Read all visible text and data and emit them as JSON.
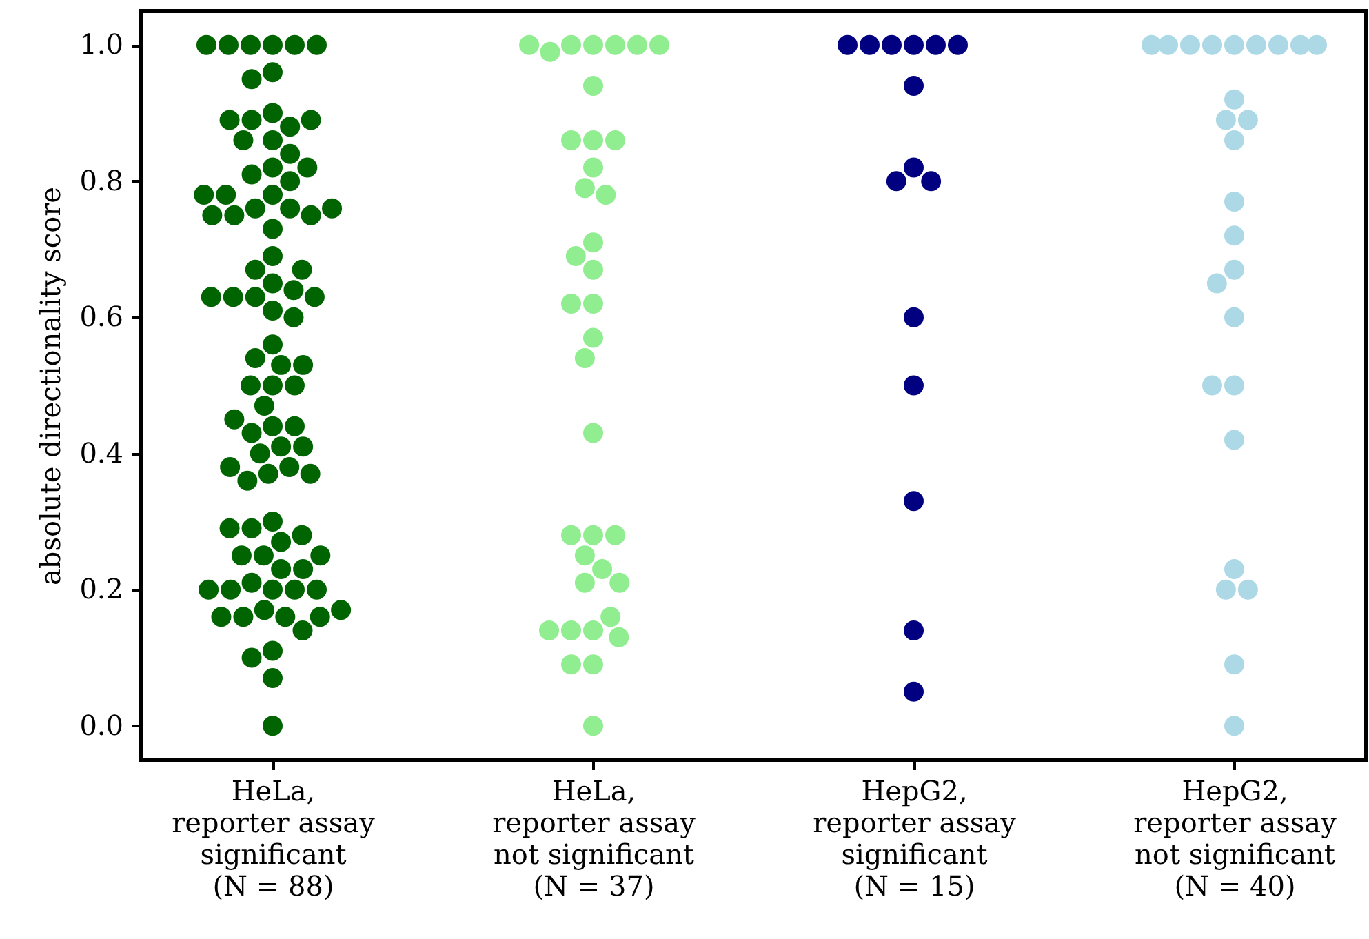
{
  "chart_data": {
    "type": "scatter",
    "ylabel": "absolute directionality score",
    "marker": "circle",
    "grid": false,
    "categories": [
      "HeLa,\nreporter assay\nsignificant\n(N = 88)",
      "HeLa,\nreporter assay\nnot significant\n(N = 37)",
      "HepG2,\nreporter assay\nsignificant\n(N = 15)",
      "HepG2,\nreporter assay\nnot significant\n(N = 40)"
    ],
    "ylim": [
      -0.05,
      1.05
    ],
    "yticks": [
      {
        "value": 0,
        "label": "0.0"
      },
      {
        "value": 0.2,
        "label": "0.2"
      },
      {
        "value": 0.4,
        "label": "0.4"
      },
      {
        "value": 0.6,
        "label": "0.6"
      },
      {
        "value": 0.8,
        "label": "0.8"
      },
      {
        "value": 1,
        "label": "1.0"
      }
    ],
    "series": [
      {
        "color": "#006400",
        "x": [
          "HeLa,\nreporter assay\nsignificant\n(N = 88)",
          "HeLa,\nreporter assay\nsignificant\n(N = 88)",
          "HeLa,\nreporter assay\nsignificant\n(N = 88)",
          "HeLa,\nreporter assay\nsignificant\n(N = 88)",
          "HeLa,\nreporter assay\nsignificant\n(N = 88)",
          "HeLa,\nreporter assay\nsignificant\n(N = 88)",
          "HeLa,\nreporter assay\nsignificant\n(N = 88)",
          "HeLa,\nreporter assay\nsignificant\n(N = 88)",
          "HeLa,\nreporter assay\nsignificant\n(N = 88)",
          "HeLa,\nreporter assay\nsignificant\n(N = 88)",
          "HeLa,\nreporter assay\nsignificant\n(N = 88)",
          "HeLa,\nreporter assay\nsignificant\n(N = 88)",
          "HeLa,\nreporter assay\nsignificant\n(N = 88)",
          "HeLa,\nreporter assay\nsignificant\n(N = 88)",
          "HeLa,\nreporter assay\nsignificant\n(N = 88)",
          "HeLa,\nreporter assay\nsignificant\n(N = 88)",
          "HeLa,\nreporter assay\nsignificant\n(N = 88)",
          "HeLa,\nreporter assay\nsignificant\n(N = 88)",
          "HeLa,\nreporter assay\nsignificant\n(N = 88)",
          "HeLa,\nreporter assay\nsignificant\n(N = 88)",
          "HeLa,\nreporter assay\nsignificant\n(N = 88)",
          "HeLa,\nreporter assay\nsignificant\n(N = 88)",
          "HeLa,\nreporter assay\nsignificant\n(N = 88)",
          "HeLa,\nreporter assay\nsignificant\n(N = 88)",
          "HeLa,\nreporter assay\nsignificant\n(N = 88)",
          "HeLa,\nreporter assay\nsignificant\n(N = 88)",
          "HeLa,\nreporter assay\nsignificant\n(N = 88)",
          "HeLa,\nreporter assay\nsignificant\n(N = 88)",
          "HeLa,\nreporter assay\nsignificant\n(N = 88)",
          "HeLa,\nreporter assay\nsignificant\n(N = 88)",
          "HeLa,\nreporter assay\nsignificant\n(N = 88)",
          "HeLa,\nreporter assay\nsignificant\n(N = 88)",
          "HeLa,\nreporter assay\nsignificant\n(N = 88)",
          "HeLa,\nreporter assay\nsignificant\n(N = 88)",
          "HeLa,\nreporter assay\nsignificant\n(N = 88)",
          "HeLa,\nreporter assay\nsignificant\n(N = 88)",
          "HeLa,\nreporter assay\nsignificant\n(N = 88)",
          "HeLa,\nreporter assay\nsignificant\n(N = 88)",
          "HeLa,\nreporter assay\nsignificant\n(N = 88)",
          "HeLa,\nreporter assay\nsignificant\n(N = 88)",
          "HeLa,\nreporter assay\nsignificant\n(N = 88)",
          "HeLa,\nreporter assay\nsignificant\n(N = 88)",
          "HeLa,\nreporter assay\nsignificant\n(N = 88)",
          "HeLa,\nreporter assay\nsignificant\n(N = 88)",
          "HeLa,\nreporter assay\nsignificant\n(N = 88)",
          "HeLa,\nreporter assay\nsignificant\n(N = 88)",
          "HeLa,\nreporter assay\nsignificant\n(N = 88)",
          "HeLa,\nreporter assay\nsignificant\n(N = 88)",
          "HeLa,\nreporter assay\nsignificant\n(N = 88)",
          "HeLa,\nreporter assay\nsignificant\n(N = 88)",
          "HeLa,\nreporter assay\nsignificant\n(N = 88)",
          "HeLa,\nreporter assay\nsignificant\n(N = 88)",
          "HeLa,\nreporter assay\nsignificant\n(N = 88)",
          "HeLa,\nreporter assay\nsignificant\n(N = 88)",
          "HeLa,\nreporter assay\nsignificant\n(N = 88)",
          "HeLa,\nreporter assay\nsignificant\n(N = 88)",
          "HeLa,\nreporter assay\nsignificant\n(N = 88)",
          "HeLa,\nreporter assay\nsignificant\n(N = 88)",
          "HeLa,\nreporter assay\nsignificant\n(N = 88)",
          "HeLa,\nreporter assay\nsignificant\n(N = 88)",
          "HeLa,\nreporter assay\nsignificant\n(N = 88)",
          "HeLa,\nreporter assay\nsignificant\n(N = 88)",
          "HeLa,\nreporter assay\nsignificant\n(N = 88)",
          "HeLa,\nreporter assay\nsignificant\n(N = 88)",
          "HeLa,\nreporter assay\nsignificant\n(N = 88)",
          "HeLa,\nreporter assay\nsignificant\n(N = 88)",
          "HeLa,\nreporter assay\nsignificant\n(N = 88)",
          "HeLa,\nreporter assay\nsignificant\n(N = 88)",
          "HeLa,\nreporter assay\nsignificant\n(N = 88)",
          "HeLa,\nreporter assay\nsignificant\n(N = 88)",
          "HeLa,\nreporter assay\nsignificant\n(N = 88)",
          "HeLa,\nreporter assay\nsignificant\n(N = 88)",
          "HeLa,\nreporter assay\nsignificant\n(N = 88)",
          "HeLa,\nreporter assay\nsignificant\n(N = 88)",
          "HeLa,\nreporter assay\nsignificant\n(N = 88)",
          "HeLa,\nreporter assay\nsignificant\n(N = 88)",
          "HeLa,\nreporter assay\nsignificant\n(N = 88)",
          "HeLa,\nreporter assay\nsignificant\n(N = 88)",
          "HeLa,\nreporter assay\nsignificant\n(N = 88)",
          "HeLa,\nreporter assay\nsignificant\n(N = 88)",
          "HeLa,\nreporter assay\nsignificant\n(N = 88)",
          "HeLa,\nreporter assay\nsignificant\n(N = 88)",
          "HeLa,\nreporter assay\nsignificant\n(N = 88)",
          "HeLa,\nreporter assay\nsignificant\n(N = 88)",
          "HeLa,\nreporter assay\nsignificant\n(N = 88)",
          "HeLa,\nreporter assay\nsignificant\n(N = 88)",
          "HeLa,\nreporter assay\nsignificant\n(N = 88)",
          "HeLa,\nreporter assay\nsignificant\n(N = 88)"
        ],
        "values": [
          1,
          1,
          1,
          1,
          1,
          1,
          0.96,
          0.95,
          0.9,
          0.89,
          0.88,
          0.89,
          0.89,
          0.86,
          0.86,
          0.84,
          0.82,
          0.81,
          0.82,
          0.8,
          0.78,
          0.76,
          0.76,
          0.75,
          0.75,
          0.75,
          0.76,
          0.78,
          0.78,
          0.73,
          0.69,
          0.67,
          0.65,
          0.64,
          0.63,
          0.63,
          0.63,
          0.63,
          0.67,
          0.61,
          0.6,
          0.56,
          0.54,
          0.53,
          0.53,
          0.5,
          0.5,
          0.5,
          0.47,
          0.44,
          0.43,
          0.41,
          0.41,
          0.44,
          0.45,
          0.4,
          0.38,
          0.37,
          0.36,
          0.37,
          0.38,
          0.3,
          0.29,
          0.27,
          0.28,
          0.29,
          0.25,
          0.25,
          0.23,
          0.2,
          0.21,
          0.23,
          0.25,
          0.2,
          0.2,
          0.2,
          0.2,
          0.17,
          0.16,
          0.16,
          0.14,
          0.16,
          0.16,
          0.17,
          0.11,
          0.1,
          0.07,
          0
        ]
      },
      {
        "color": "#90ee90",
        "x": [
          "HeLa,\nreporter assay\nnot significant\n(N = 37)",
          "HeLa,\nreporter assay\nnot significant\n(N = 37)",
          "HeLa,\nreporter assay\nnot significant\n(N = 37)",
          "HeLa,\nreporter assay\nnot significant\n(N = 37)",
          "HeLa,\nreporter assay\nnot significant\n(N = 37)",
          "HeLa,\nreporter assay\nnot significant\n(N = 37)",
          "HeLa,\nreporter assay\nnot significant\n(N = 37)",
          "HeLa,\nreporter assay\nnot significant\n(N = 37)",
          "HeLa,\nreporter assay\nnot significant\n(N = 37)",
          "HeLa,\nreporter assay\nnot significant\n(N = 37)",
          "HeLa,\nreporter assay\nnot significant\n(N = 37)",
          "HeLa,\nreporter assay\nnot significant\n(N = 37)",
          "HeLa,\nreporter assay\nnot significant\n(N = 37)",
          "HeLa,\nreporter assay\nnot significant\n(N = 37)",
          "HeLa,\nreporter assay\nnot significant\n(N = 37)",
          "HeLa,\nreporter assay\nnot significant\n(N = 37)",
          "HeLa,\nreporter assay\nnot significant\n(N = 37)",
          "HeLa,\nreporter assay\nnot significant\n(N = 37)",
          "HeLa,\nreporter assay\nnot significant\n(N = 37)",
          "HeLa,\nreporter assay\nnot significant\n(N = 37)",
          "HeLa,\nreporter assay\nnot significant\n(N = 37)",
          "HeLa,\nreporter assay\nnot significant\n(N = 37)",
          "HeLa,\nreporter assay\nnot significant\n(N = 37)",
          "HeLa,\nreporter assay\nnot significant\n(N = 37)",
          "HeLa,\nreporter assay\nnot significant\n(N = 37)",
          "HeLa,\nreporter assay\nnot significant\n(N = 37)",
          "HeLa,\nreporter assay\nnot significant\n(N = 37)",
          "HeLa,\nreporter assay\nnot significant\n(N = 37)",
          "HeLa,\nreporter assay\nnot significant\n(N = 37)",
          "HeLa,\nreporter assay\nnot significant\n(N = 37)",
          "HeLa,\nreporter assay\nnot significant\n(N = 37)",
          "HeLa,\nreporter assay\nnot significant\n(N = 37)",
          "HeLa,\nreporter assay\nnot significant\n(N = 37)",
          "HeLa,\nreporter assay\nnot significant\n(N = 37)",
          "HeLa,\nreporter assay\nnot significant\n(N = 37)",
          "HeLa,\nreporter assay\nnot significant\n(N = 37)",
          "HeLa,\nreporter assay\nnot significant\n(N = 37)"
        ],
        "values": [
          1,
          1,
          1,
          0.99,
          1,
          1,
          1,
          0.94,
          0.86,
          0.86,
          0.86,
          0.82,
          0.79,
          0.78,
          0.71,
          0.69,
          0.67,
          0.62,
          0.62,
          0.57,
          0.54,
          0.43,
          0.28,
          0.28,
          0.28,
          0.25,
          0.23,
          0.21,
          0.21,
          0.14,
          0.14,
          0.16,
          0.13,
          0.14,
          0.09,
          0.09,
          0
        ]
      },
      {
        "color": "#000080",
        "x": [
          "HepG2,\nreporter assay\nsignificant\n(N = 15)",
          "HepG2,\nreporter assay\nsignificant\n(N = 15)",
          "HepG2,\nreporter assay\nsignificant\n(N = 15)",
          "HepG2,\nreporter assay\nsignificant\n(N = 15)",
          "HepG2,\nreporter assay\nsignificant\n(N = 15)",
          "HepG2,\nreporter assay\nsignificant\n(N = 15)",
          "HepG2,\nreporter assay\nsignificant\n(N = 15)",
          "HepG2,\nreporter assay\nsignificant\n(N = 15)",
          "HepG2,\nreporter assay\nsignificant\n(N = 15)",
          "HepG2,\nreporter assay\nsignificant\n(N = 15)",
          "HepG2,\nreporter assay\nsignificant\n(N = 15)",
          "HepG2,\nreporter assay\nsignificant\n(N = 15)",
          "HepG2,\nreporter assay\nsignificant\n(N = 15)",
          "HepG2,\nreporter assay\nsignificant\n(N = 15)",
          "HepG2,\nreporter assay\nsignificant\n(N = 15)"
        ],
        "values": [
          1,
          1,
          1,
          1,
          1,
          1,
          0.94,
          0.82,
          0.8,
          0.8,
          0.6,
          0.5,
          0.33,
          0.14,
          0.05
        ]
      },
      {
        "color": "#add8e6",
        "x": [
          "HepG2,\nreporter assay\nnot significant\n(N = 40)",
          "HepG2,\nreporter assay\nnot significant\n(N = 40)",
          "HepG2,\nreporter assay\nnot significant\n(N = 40)",
          "HepG2,\nreporter assay\nnot significant\n(N = 40)",
          "HepG2,\nreporter assay\nnot significant\n(N = 40)",
          "HepG2,\nreporter assay\nnot significant\n(N = 40)",
          "HepG2,\nreporter assay\nnot significant\n(N = 40)",
          "HepG2,\nreporter assay\nnot significant\n(N = 40)",
          "HepG2,\nreporter assay\nnot significant\n(N = 40)",
          "HepG2,\nreporter assay\nnot significant\n(N = 40)",
          "HepG2,\nreporter assay\nnot significant\n(N = 40)",
          "HepG2,\nreporter assay\nnot significant\n(N = 40)",
          "HepG2,\nreporter assay\nnot significant\n(N = 40)",
          "HepG2,\nreporter assay\nnot significant\n(N = 40)",
          "HepG2,\nreporter assay\nnot significant\n(N = 40)",
          "HepG2,\nreporter assay\nnot significant\n(N = 40)",
          "HepG2,\nreporter assay\nnot significant\n(N = 40)",
          "HepG2,\nreporter assay\nnot significant\n(N = 40)",
          "HepG2,\nreporter assay\nnot significant\n(N = 40)",
          "HepG2,\nreporter assay\nnot significant\n(N = 40)",
          "HepG2,\nreporter assay\nnot significant\n(N = 40)",
          "HepG2,\nreporter assay\nnot significant\n(N = 40)",
          "HepG2,\nreporter assay\nnot significant\n(N = 40)",
          "HepG2,\nreporter assay\nnot significant\n(N = 40)",
          "HepG2,\nreporter assay\nnot significant\n(N = 40)",
          "HepG2,\nreporter assay\nnot significant\n(N = 40)",
          "HepG2,\nreporter assay\nnot significant\n(N = 40)",
          "HepG2,\nreporter assay\nnot significant\n(N = 40)",
          "HepG2,\nreporter assay\nnot significant\n(N = 40)",
          "HepG2,\nreporter assay\nnot significant\n(N = 40)",
          "HepG2,\nreporter assay\nnot significant\n(N = 40)",
          "HepG2,\nreporter assay\nnot significant\n(N = 40)",
          "HepG2,\nreporter assay\nnot significant\n(N = 40)",
          "HepG2,\nreporter assay\nnot significant\n(N = 40)",
          "HepG2,\nreporter assay\nnot significant\n(N = 40)",
          "HepG2,\nreporter assay\nnot significant\n(N = 40)",
          "HepG2,\nreporter assay\nnot significant\n(N = 40)",
          "HepG2,\nreporter assay\nnot significant\n(N = 40)",
          "HepG2,\nreporter assay\nnot significant\n(N = 40)",
          "HepG2,\nreporter assay\nnot significant\n(N = 40)"
        ],
        "values": [
          1,
          1,
          1,
          1,
          1,
          1,
          1,
          1,
          1,
          null,
          null,
          null,
          null,
          null,
          null,
          null,
          null,
          null,
          null,
          null,
          null,
          null,
          null,
          0.92,
          0.89,
          0.89,
          0.86,
          0.77,
          0.72,
          0.67,
          0.65,
          0.6,
          0.5,
          0.5,
          0.42,
          0.23,
          0.2,
          0.2,
          0.09,
          0
        ]
      }
    ]
  }
}
